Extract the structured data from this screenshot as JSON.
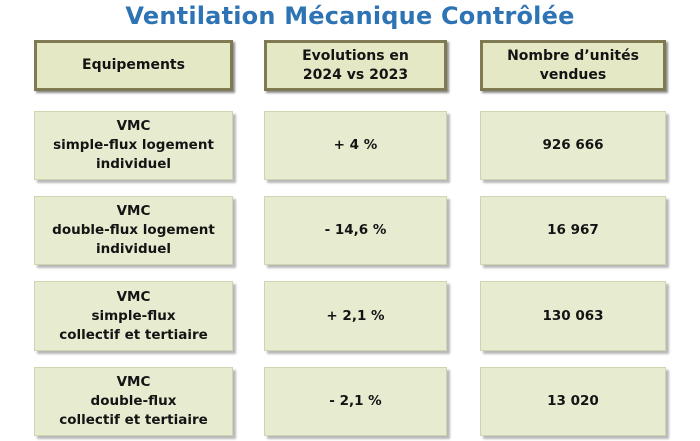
{
  "title": "Ventilation Mécanique Contrôlée",
  "headers": {
    "equipements": "Equipements",
    "evolutions_line1": "Evolutions en",
    "evolutions_line2": "2024 vs 2023",
    "units_line1": "Nombre d’unités",
    "units_line2": "vendues"
  },
  "rows": [
    {
      "equipment": [
        "VMC",
        "simple-flux logement",
        "individuel"
      ],
      "evolution": "+ 4 %",
      "units": "926 666"
    },
    {
      "equipment": [
        "VMC",
        "double-flux logement",
        "individuel"
      ],
      "evolution": "- 14,6 %",
      "units": "16 967"
    },
    {
      "equipment": [
        "VMC",
        "simple-flux",
        "collectif et tertiaire"
      ],
      "evolution": "+ 2,1 %",
      "units": "130 063"
    },
    {
      "equipment": [
        "VMC",
        "double-flux",
        "collectif et tertiaire"
      ],
      "evolution": "- 2,1 %",
      "units": "13 020"
    }
  ],
  "colors": {
    "title": "#2e74b5",
    "header_bg": "#e4e8c4",
    "header_border": "#7f7a52",
    "cell_bg": "#e7ecd0"
  }
}
